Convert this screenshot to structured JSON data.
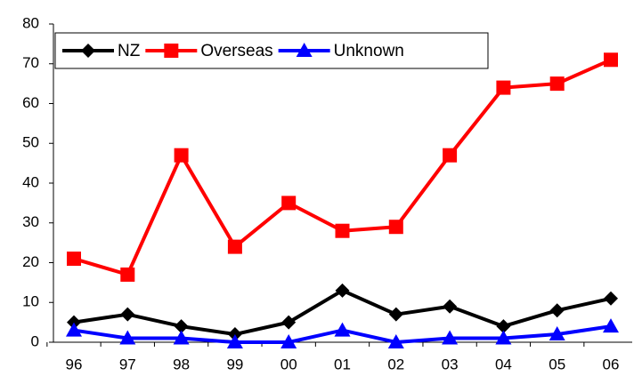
{
  "chart_data": {
    "type": "line",
    "categories": [
      "96",
      "97",
      "98",
      "99",
      "00",
      "01",
      "02",
      "03",
      "04",
      "05",
      "06"
    ],
    "series": [
      {
        "name": "NZ",
        "color": "#000000",
        "marker": "diamond",
        "values": [
          5,
          7,
          4,
          2,
          5,
          13,
          7,
          9,
          4,
          8,
          11
        ]
      },
      {
        "name": "Overseas",
        "color": "#ff0000",
        "marker": "square",
        "values": [
          21,
          17,
          47,
          24,
          35,
          28,
          29,
          47,
          64,
          65,
          71
        ]
      },
      {
        "name": "Unknown",
        "color": "#0000ff",
        "marker": "triangle",
        "values": [
          3,
          1,
          1,
          0,
          0,
          3,
          0,
          1,
          1,
          2,
          4
        ]
      }
    ],
    "ylim": [
      0,
      80
    ],
    "yticks": [
      0,
      10,
      20,
      30,
      40,
      50,
      60,
      70,
      80
    ],
    "grid": false,
    "legend": "upper left"
  }
}
